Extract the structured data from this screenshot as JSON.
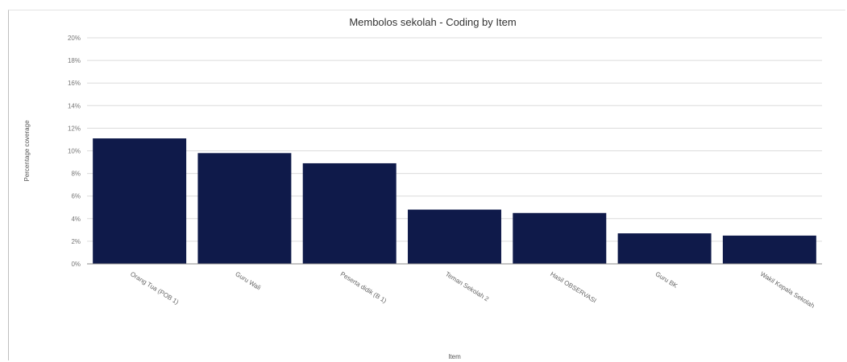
{
  "chart_data": {
    "type": "bar",
    "title": "Membolos sekolah - Coding by Item",
    "xlabel": "Item",
    "ylabel": "Percentage coverage",
    "categories": [
      "Orang Tua (POB 1)",
      "Guru Wali",
      "Peserta didik (B 1)",
      "Teman Sekolah 2",
      "Hasil OBSERVASI",
      "Guru BK",
      "Wakil Kepala Sekolah"
    ],
    "values": [
      11.1,
      9.8,
      8.9,
      4.8,
      4.5,
      2.7,
      2.5
    ],
    "ylim": [
      0,
      20
    ],
    "yticks": [
      "0%",
      "2%",
      "4%",
      "6%",
      "8%",
      "10%",
      "12%",
      "14%",
      "16%",
      "18%",
      "20%"
    ],
    "grid": true,
    "legend": "none",
    "bar_color": "#0f1a4a"
  }
}
